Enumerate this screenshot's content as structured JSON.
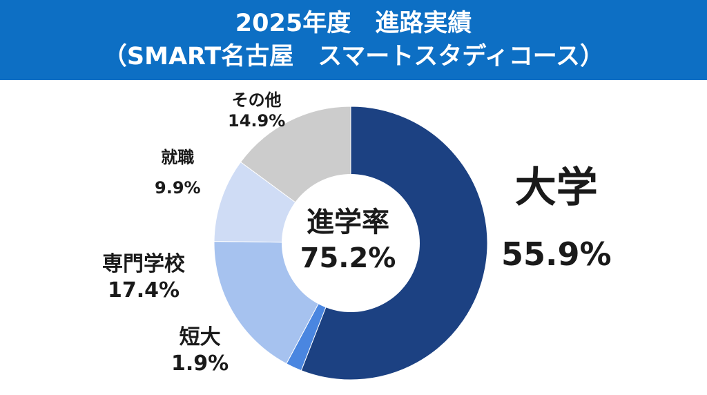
{
  "header": {
    "line1": "2025年度　進路実績",
    "line2": "（SMART名古屋　スマートスタディコース）"
  },
  "center": {
    "label": "進学率",
    "value": "75.2%"
  },
  "chart_data": {
    "type": "pie",
    "title": "2025年度　進路実績（SMART名古屋　スマートスタディコース）",
    "slices": [
      {
        "name": "大学",
        "value": 55.9,
        "label": "55.9%",
        "color": "#1c4182"
      },
      {
        "name": "短大",
        "value": 1.9,
        "label": "1.9%",
        "color": "#4a86e0"
      },
      {
        "name": "専門学校",
        "value": 17.4,
        "label": "17.4%",
        "color": "#a6c2ef"
      },
      {
        "name": "就職",
        "value": 9.9,
        "label": "9.9%",
        "color": "#cfdcf5"
      },
      {
        "name": "その他",
        "value": 14.9,
        "label": "14.9%",
        "color": "#cccccc"
      }
    ],
    "legend": "none"
  }
}
